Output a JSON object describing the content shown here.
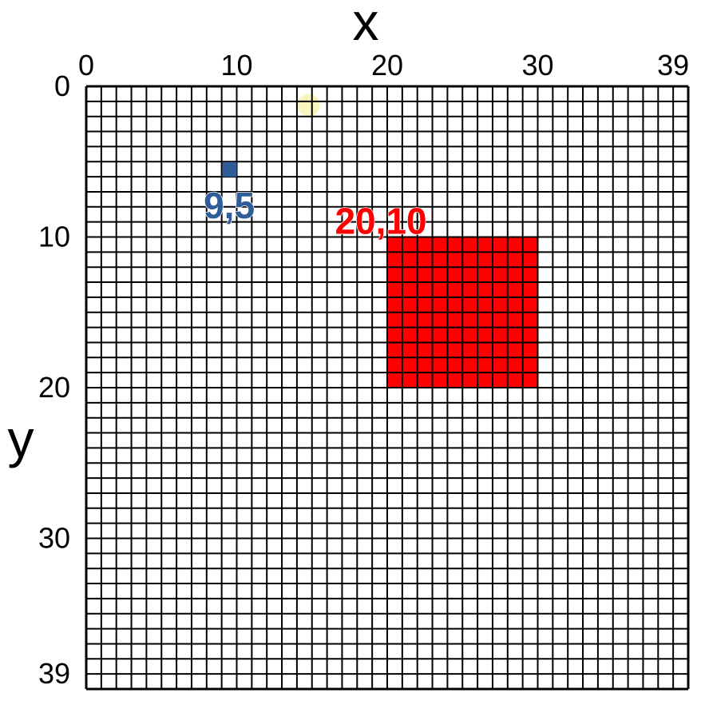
{
  "axes": {
    "x_title": "x",
    "y_title": "y",
    "x_ticks": [
      {
        "value": 0,
        "label": "0"
      },
      {
        "value": 10,
        "label": "10"
      },
      {
        "value": 20,
        "label": "20"
      },
      {
        "value": 30,
        "label": "30"
      },
      {
        "value": 39,
        "label": "39"
      }
    ],
    "y_ticks": [
      {
        "value": 0,
        "label": "0"
      },
      {
        "value": 10,
        "label": "10"
      },
      {
        "value": 20,
        "label": "20"
      },
      {
        "value": 30,
        "label": "30"
      },
      {
        "value": 39,
        "label": "39"
      }
    ]
  },
  "grid": {
    "columns": 40,
    "rows": 40,
    "line_color": "#000000"
  },
  "point": {
    "label": "9,5",
    "x": 9,
    "y": 5,
    "color": "#2e5d99"
  },
  "rectangle": {
    "label": "20,10",
    "x": 20,
    "y": 10,
    "width_cells": 10,
    "height_cells": 10,
    "color": "#ff0000"
  },
  "highlight_dot": {
    "x": 15,
    "y": 0.5,
    "color": "#f8f3b0"
  }
}
